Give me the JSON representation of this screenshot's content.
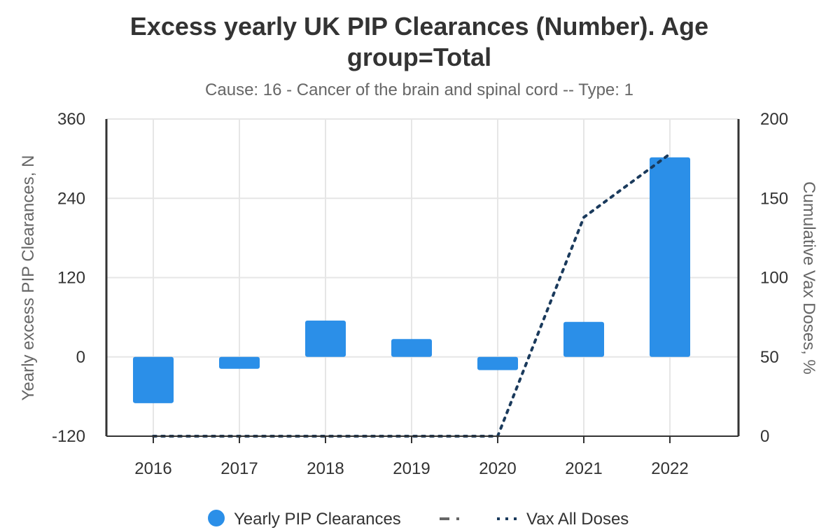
{
  "chart_data": {
    "type": "bar",
    "title_lines": [
      "Excess yearly UK PIP Clearances (Number). Age",
      "group=Total"
    ],
    "subtitle": "Cause: 16 - Cancer of the brain and spinal cord -- Type: 1",
    "categories": [
      "2016",
      "2017",
      "2018",
      "2019",
      "2020",
      "2021",
      "2022"
    ],
    "y_left": {
      "label": "Yearly excess PIP Clearances, N",
      "range": [
        -120,
        360
      ],
      "ticks": [
        "-120",
        "0",
        "120",
        "240",
        "360"
      ]
    },
    "y_right": {
      "label": "Cumulative Vax Doses, %",
      "range": [
        0,
        200
      ],
      "ticks": [
        "0",
        "50",
        "100",
        "150",
        "200"
      ]
    },
    "series": [
      {
        "name": "Yearly PIP Clearances",
        "kind": "bar",
        "axis": "left",
        "color": "#2b8fe8",
        "values": [
          -70,
          -18,
          55,
          27,
          -20,
          53,
          302
        ]
      },
      {
        "name": "Vax All Doses",
        "kind": "line",
        "style": "dotted",
        "axis": "right",
        "color": "#1a3a5c",
        "x": [
          "2016",
          "2017",
          "2018",
          "2019",
          "2020",
          "2021",
          "2022"
        ],
        "values": [
          0,
          0,
          0,
          0,
          0,
          138,
          178
        ]
      }
    ],
    "legend": {
      "position": "bottom",
      "items": [
        {
          "label": "Yearly PIP Clearances",
          "symbol": "circle",
          "color": "#2b8fe8"
        },
        {
          "label": "",
          "symbol": "dash-dot",
          "color": "#666666"
        },
        {
          "label": "Vax All Doses",
          "symbol": "dotted",
          "color": "#1a3a5c"
        }
      ]
    },
    "grid": true
  }
}
